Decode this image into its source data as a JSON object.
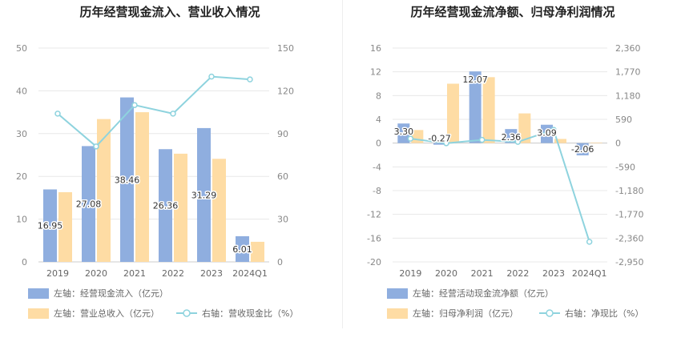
{
  "chart_data": [
    {
      "type": "bar",
      "title": "历年经营现金流入、营业收入情况",
      "categories": [
        "2019",
        "2020",
        "2021",
        "2022",
        "2023",
        "2024Q1"
      ],
      "left_axis": {
        "ticks": [
          "0",
          "10",
          "20",
          "30",
          "40",
          "50"
        ],
        "range": [
          0,
          50
        ]
      },
      "right_axis": {
        "ticks": [
          "0",
          "30",
          "60",
          "90",
          "120",
          "150"
        ],
        "range": [
          0,
          150
        ]
      },
      "series": [
        {
          "name": "左轴：经营现金流入（亿元）",
          "kind": "bar",
          "axis": "left",
          "color": "#8FAEDF",
          "values": [
            16.95,
            27.08,
            38.46,
            26.36,
            31.29,
            6.01
          ],
          "labels": [
            "16.95",
            "27.08",
            "38.46",
            "26.36",
            "31.29",
            "6.01"
          ]
        },
        {
          "name": "左轴：营业总收入（亿元）",
          "kind": "bar",
          "axis": "left",
          "color": "#FEDCA4",
          "values": [
            16.3,
            33.4,
            35.0,
            25.3,
            24.1,
            4.7
          ]
        },
        {
          "name": "右轴：营收现金比（%）",
          "kind": "line",
          "axis": "right",
          "color": "#8ED3DE",
          "values": [
            104,
            81,
            110,
            104,
            130,
            128
          ]
        }
      ]
    },
    {
      "type": "bar",
      "title": "历年经营现金流净额、归母净利润情况",
      "categories": [
        "2019",
        "2020",
        "2021",
        "2022",
        "2023",
        "2024Q1"
      ],
      "left_axis": {
        "ticks": [
          "16",
          "12",
          "8",
          "4",
          "0",
          "-4",
          "-8",
          "-12",
          "-16",
          "-20"
        ],
        "range": [
          -20,
          16
        ]
      },
      "right_axis": {
        "ticks": [
          "2,360",
          "1,770",
          "1,180",
          "590",
          "0",
          "-590",
          "-1,180",
          "-1,770",
          "-2,360",
          "-2,950"
        ],
        "range": [
          -2950,
          2360
        ]
      },
      "series": [
        {
          "name": "左轴：经营活动现金流净额（亿元）",
          "kind": "bar",
          "axis": "left",
          "color": "#8FAEDF",
          "values": [
            3.3,
            -0.27,
            12.07,
            2.36,
            3.09,
            -2.06
          ],
          "labels": [
            "3.30",
            "-0.27",
            "12.07",
            "2.36",
            "3.09",
            "-2.06"
          ]
        },
        {
          "name": "左轴：归母净利润（亿元）",
          "kind": "bar",
          "axis": "left",
          "color": "#FEDCA4",
          "values": [
            2.2,
            10.0,
            11.1,
            5.0,
            0.7,
            0.1
          ]
        },
        {
          "name": "右轴：净现比（%）",
          "kind": "line",
          "axis": "right",
          "color": "#8ED3DE",
          "values": [
            110,
            -3,
            80,
            30,
            330,
            -2450
          ]
        }
      ]
    }
  ]
}
